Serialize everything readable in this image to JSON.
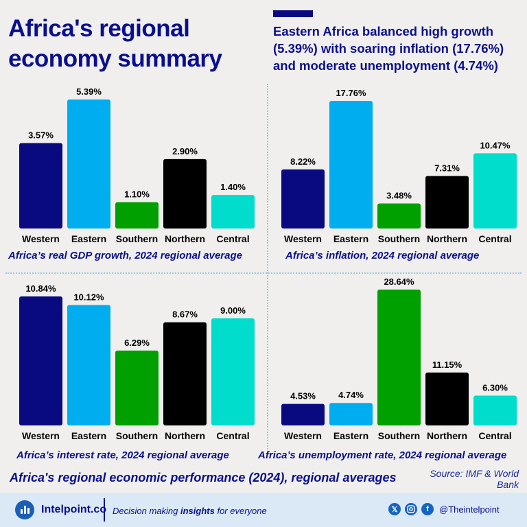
{
  "title": "Africa's regional economy summary",
  "headline": "Eastern Africa balanced high growth (5.39%) with soaring inflation (17.76%) and moderate unemployment (4.74%)",
  "subtitle": "Africa's regional economic performance (2024), regional averages",
  "source": "Source: IMF & World Bank",
  "footer": {
    "brand": "Intelpoint.co",
    "tagline_pre": "Decision making ",
    "tagline_bold": "insights",
    "tagline_post": " for everyone",
    "handle": "@Theintelpoint",
    "social_icons": [
      "x-icon",
      "instagram-icon",
      "facebook-icon"
    ]
  },
  "colors": {
    "Western": "#0a0a80",
    "Eastern": "#00aeef",
    "Southern": "#00a000",
    "Northern": "#000000",
    "Central": "#00ddcc"
  },
  "chart_data": [
    {
      "type": "bar",
      "caption": "Africa’s real GDP growth, 2024 regional average",
      "categories": [
        "Western",
        "Eastern",
        "Southern",
        "Northern",
        "Central"
      ],
      "values": [
        3.57,
        5.39,
        1.1,
        2.9,
        1.4
      ],
      "labels": [
        "3.57%",
        "5.39%",
        "1.10%",
        "2.90%",
        "1.40%"
      ]
    },
    {
      "type": "bar",
      "caption": "Africa’s inflation, 2024 regional average",
      "categories": [
        "Western",
        "Eastern",
        "Southern",
        "Northern",
        "Central"
      ],
      "values": [
        8.22,
        17.76,
        3.48,
        7.31,
        10.47
      ],
      "labels": [
        "8.22%",
        "17.76%",
        "3.48%",
        "7.31%",
        "10.47%"
      ]
    },
    {
      "type": "bar",
      "caption": "Africa’s interest rate, 2024 regional average",
      "categories": [
        "Western",
        "Eastern",
        "Southern",
        "Northern",
        "Central"
      ],
      "values": [
        10.84,
        10.12,
        6.29,
        8.67,
        9.0
      ],
      "labels": [
        "10.84%",
        "10.12%",
        "6.29%",
        "8.67%",
        "9.00%"
      ]
    },
    {
      "type": "bar",
      "caption": "Africa’s unemployment rate, 2024 regional average",
      "categories": [
        "Western",
        "Eastern",
        "Southern",
        "Northern",
        "Central"
      ],
      "values": [
        4.53,
        4.74,
        28.64,
        11.15,
        6.3
      ],
      "labels": [
        "4.53%",
        "4.74%",
        "28.64%",
        "11.15%",
        "6.30%"
      ]
    }
  ]
}
